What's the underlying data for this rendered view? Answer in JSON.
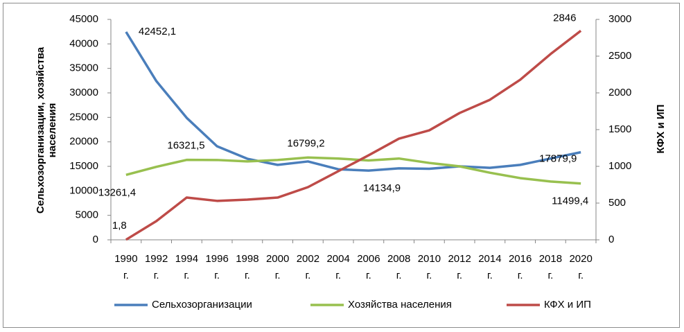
{
  "chart_data": {
    "type": "line",
    "y_label": "Сельхозорганизации, хозяйства населения",
    "y2_label": "КФХ и ИП",
    "categories": [
      "1990 г.",
      "1992 г.",
      "1994 г.",
      "1996 г.",
      "1998 г.",
      "2000 г.",
      "2002 г.",
      "2004 г.",
      "2006 г.",
      "2008 г.",
      "2010 г.",
      "2012 г.",
      "2014 г.",
      "2016 г.",
      "2018 г.",
      "2020 г."
    ],
    "ylim": [
      0,
      45000
    ],
    "yticks": [
      0,
      5000,
      10000,
      15000,
      20000,
      25000,
      30000,
      35000,
      40000,
      45000
    ],
    "y2lim": [
      0,
      3000
    ],
    "y2ticks": [
      0,
      500,
      1000,
      1500,
      2000,
      2500,
      3000
    ],
    "grid": false,
    "legend": "bottom",
    "series": [
      {
        "name": "Сельхозорганизации",
        "color": "#4a7ebb",
        "values": [
          42452.1,
          32400,
          24900,
          19100,
          16550,
          15300,
          16000,
          14400,
          14134.9,
          14600,
          14500,
          15000,
          14700,
          15300,
          16600,
          17879.9
        ],
        "value_labels": [
          "42452,1",
          null,
          null,
          null,
          null,
          null,
          null,
          null,
          "14134,9",
          null,
          null,
          null,
          null,
          null,
          null,
          "17879,9"
        ]
      },
      {
        "name": "Хозяйства населения",
        "color": "#98c04f",
        "values": [
          13261.4,
          14900,
          16321.5,
          16300,
          16000,
          16300,
          16799.2,
          16600,
          16200,
          16600,
          15700,
          15000,
          13700,
          12600,
          11900,
          11499.4
        ],
        "value_labels": [
          "13261,4",
          null,
          "16321,5",
          null,
          null,
          null,
          "16799,2",
          null,
          null,
          null,
          null,
          null,
          null,
          null,
          null,
          "11499,4"
        ]
      },
      {
        "name": "КФХ и ИП",
        "color": "#be4b48",
        "axis": "y2",
        "values": [
          1.8,
          255,
          575,
          530,
          547,
          575,
          717,
          934,
          1150,
          1377,
          1490,
          1726,
          1906,
          2179,
          2528,
          2846
        ],
        "value_labels": [
          "1,8",
          null,
          null,
          null,
          null,
          null,
          null,
          null,
          null,
          null,
          null,
          null,
          null,
          null,
          null,
          "2846"
        ]
      }
    ]
  }
}
